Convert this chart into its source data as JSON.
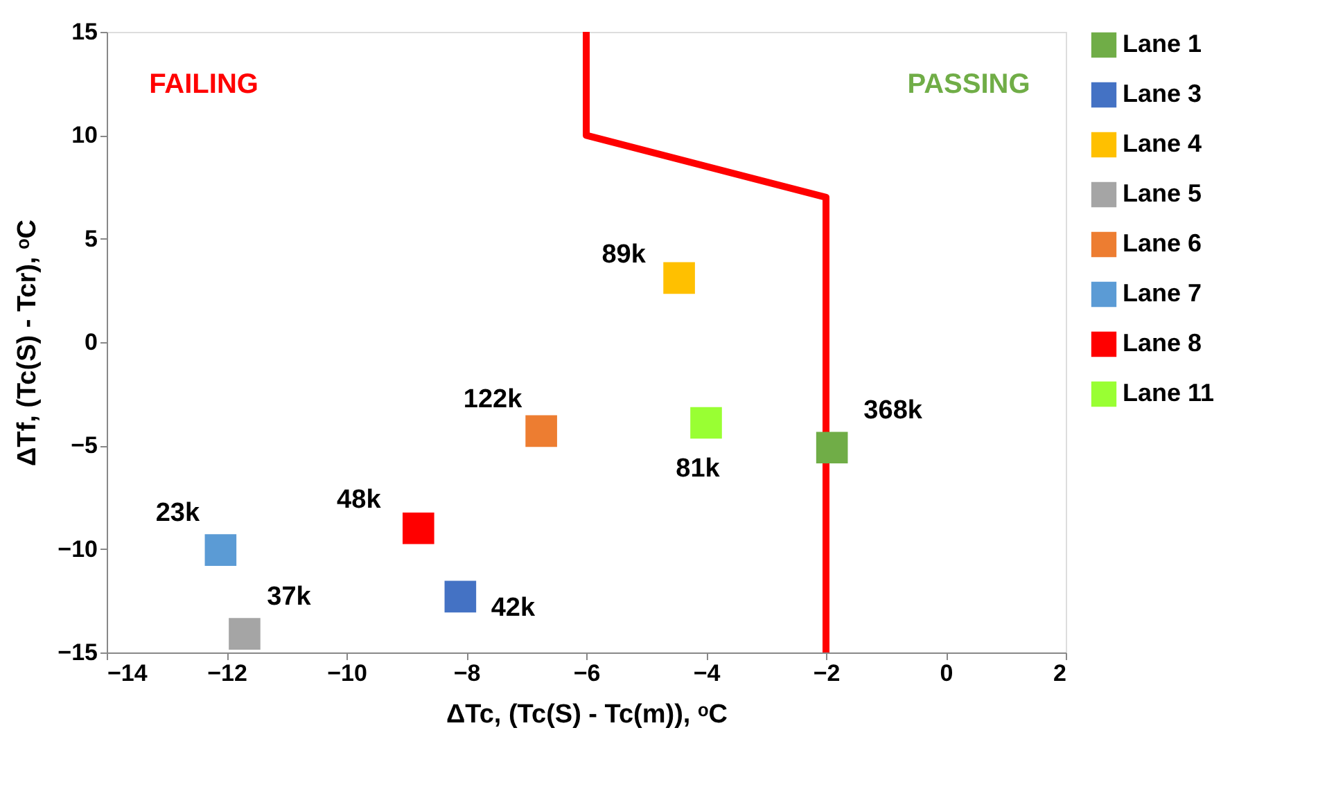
{
  "chart_data": {
    "type": "scatter",
    "xlabel": "ΔTc, (Tc(S) - Tc(m)), ᵒC",
    "ylabel": "ΔTf, (Tc(S) - Tcr), ᵒC",
    "xlim": [
      -14,
      2
    ],
    "xticks": [
      -14,
      -12,
      -10,
      -8,
      -6,
      -4,
      -2,
      0,
      2
    ],
    "ylim": [
      -15,
      15
    ],
    "yticks": [
      -15,
      -10,
      -5,
      0,
      5,
      10,
      15
    ],
    "grid": false,
    "legend": "right",
    "marker": "square",
    "series": [
      {
        "name": "Lane 1",
        "color": "#70ad47",
        "x": [
          -1.9
        ],
        "values": [
          -5.1
        ]
      },
      {
        "name": "Lane 3",
        "color": "#4472c4",
        "x": [
          -8.1
        ],
        "values": [
          -12.3
        ]
      },
      {
        "name": "Lane 4",
        "color": "#ffc000",
        "x": [
          -4.45
        ],
        "values": [
          3.1
        ]
      },
      {
        "name": "Lane 5",
        "color": "#a5a5a5",
        "x": [
          -11.7
        ],
        "values": [
          -14.1
        ]
      },
      {
        "name": "Lane 6",
        "color": "#ed7d31",
        "x": [
          -6.75
        ],
        "values": [
          -4.3
        ]
      },
      {
        "name": "Lane 7",
        "color": "#5b9bd5",
        "x": [
          -12.1
        ],
        "values": [
          -10.05
        ]
      },
      {
        "name": "Lane 8",
        "color": "#ff0000",
        "x": [
          -8.8
        ],
        "values": [
          -9.0
        ]
      },
      {
        "name": "Lane 11",
        "color": "#99ff33",
        "x": [
          -4.0
        ],
        "values": [
          -3.9
        ]
      },
      {
        "type": "line",
        "color": "#ff0000",
        "marker": "none",
        "x": [
          -6,
          -6,
          -2,
          -2
        ],
        "values": [
          15,
          10,
          7,
          -15
        ]
      }
    ],
    "annotations": [
      {
        "text": "368k",
        "x": -1.9,
        "y": -5.1
      },
      {
        "text": "89k",
        "x": -4.45,
        "y": 3.1
      },
      {
        "text": "122k",
        "x": -6.75,
        "y": -4.3
      },
      {
        "text": "81k",
        "x": -4.0,
        "y": -3.9
      },
      {
        "text": "23k",
        "x": -12.1,
        "y": -10.05
      },
      {
        "text": "48k",
        "x": -8.8,
        "y": -9.0
      },
      {
        "text": "42k",
        "x": -8.1,
        "y": -12.3
      },
      {
        "text": "37k",
        "x": -11.7,
        "y": -14.1
      },
      "FAILING",
      "PASSING"
    ]
  }
}
